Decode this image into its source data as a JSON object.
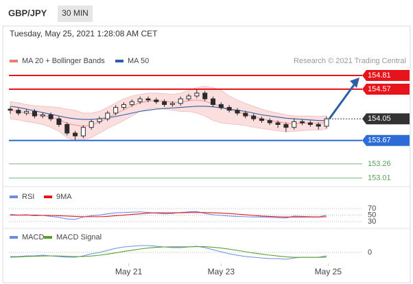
{
  "header": {
    "symbol": "GBP/JPY",
    "timeframe": "30 MIN",
    "timestamp": "Tuesday, May 25, 2021 1:28:08 AM CET"
  },
  "chart_data": [
    {
      "type": "candlestick",
      "credit": "Research © 2021 Trading Central",
      "candle_color": "#2b2b2b",
      "xlim": [
        0,
        39
      ],
      "ylim": [
        152.91,
        154.93
      ],
      "ohlc": [
        [
          154.22,
          154.26,
          154.14,
          154.2
        ],
        [
          154.2,
          154.24,
          154.11,
          154.15
        ],
        [
          154.15,
          154.22,
          154.11,
          154.18
        ],
        [
          154.18,
          154.22,
          154.06,
          154.1
        ],
        [
          154.1,
          154.16,
          154.06,
          154.12
        ],
        [
          154.12,
          154.16,
          154.01,
          154.05
        ],
        [
          154.05,
          154.09,
          153.91,
          153.95
        ],
        [
          153.95,
          153.99,
          153.76,
          153.8
        ],
        [
          153.8,
          153.84,
          153.66,
          153.75
        ],
        [
          153.75,
          153.94,
          153.71,
          153.9
        ],
        [
          153.9,
          154.04,
          153.86,
          154.0
        ],
        [
          154.0,
          154.09,
          153.96,
          154.05
        ],
        [
          154.05,
          154.19,
          154.01,
          154.15
        ],
        [
          154.15,
          154.29,
          154.11,
          154.25
        ],
        [
          154.25,
          154.34,
          154.21,
          154.3
        ],
        [
          154.3,
          154.39,
          154.26,
          154.35
        ],
        [
          154.35,
          154.44,
          154.31,
          154.4
        ],
        [
          154.4,
          154.44,
          154.34,
          154.38
        ],
        [
          154.38,
          154.42,
          154.31,
          154.35
        ],
        [
          154.35,
          154.39,
          154.26,
          154.3
        ],
        [
          154.3,
          154.36,
          154.26,
          154.32
        ],
        [
          154.32,
          154.44,
          154.28,
          154.4
        ],
        [
          154.4,
          154.49,
          154.36,
          154.45
        ],
        [
          154.45,
          154.57,
          154.41,
          154.5
        ],
        [
          154.5,
          154.54,
          154.36,
          154.4
        ],
        [
          154.4,
          154.44,
          154.26,
          154.3
        ],
        [
          154.3,
          154.34,
          154.21,
          154.25
        ],
        [
          154.25,
          154.29,
          154.16,
          154.2
        ],
        [
          154.2,
          154.24,
          154.11,
          154.15
        ],
        [
          154.15,
          154.19,
          154.06,
          154.1
        ],
        [
          154.1,
          154.14,
          154.01,
          154.05
        ],
        [
          154.05,
          154.09,
          153.98,
          154.02
        ],
        [
          154.02,
          154.06,
          153.94,
          153.98
        ],
        [
          153.98,
          154.02,
          153.89,
          153.95
        ],
        [
          153.95,
          153.99,
          153.82,
          153.9
        ],
        [
          153.9,
          154.06,
          153.86,
          154.0
        ],
        [
          154.0,
          154.04,
          153.94,
          153.98
        ],
        [
          153.98,
          154.02,
          153.91,
          153.95
        ],
        [
          153.95,
          153.99,
          153.86,
          153.92
        ],
        [
          153.92,
          154.09,
          153.88,
          154.05
        ]
      ],
      "overlays": [
        {
          "name": "MA 20 + Bollinger Bands",
          "color": "#f07a7a",
          "values": [
            154.2,
            154.18,
            154.15,
            154.13,
            154.11,
            154.08,
            154.04,
            153.97,
            153.94,
            153.92,
            153.94,
            153.99,
            154.07,
            154.14,
            154.21,
            154.28,
            154.33,
            154.36,
            154.37,
            154.36,
            154.34,
            154.34,
            154.37,
            154.38,
            154.36,
            154.31,
            154.27,
            154.21,
            154.17,
            154.13,
            154.09,
            154.05,
            154.02,
            154.0,
            153.97,
            153.97,
            153.97,
            153.98,
            153.97,
            153.99
          ],
          "upper": [
            154.35,
            154.33,
            154.3,
            154.28,
            154.27,
            154.26,
            154.25,
            154.22,
            154.2,
            154.15,
            154.15,
            154.18,
            154.25,
            154.33,
            154.4,
            154.45,
            154.48,
            154.5,
            154.5,
            154.49,
            154.48,
            154.5,
            154.55,
            154.6,
            154.62,
            154.6,
            154.55,
            154.45,
            154.38,
            154.32,
            154.27,
            154.22,
            154.18,
            154.15,
            154.12,
            154.1,
            154.1,
            154.1,
            154.09,
            154.1
          ],
          "lower": [
            154.05,
            154.03,
            154.0,
            153.98,
            153.95,
            153.9,
            153.83,
            153.72,
            153.67,
            153.68,
            153.72,
            153.8,
            153.88,
            153.95,
            154.02,
            154.1,
            154.18,
            154.22,
            154.24,
            154.22,
            154.2,
            154.18,
            154.18,
            154.15,
            154.1,
            154.02,
            153.98,
            153.96,
            153.95,
            153.93,
            153.9,
            153.88,
            153.86,
            153.84,
            153.82,
            153.83,
            153.84,
            153.85,
            153.85,
            153.87
          ]
        },
        {
          "name": "MA 50",
          "color": "#2d5fa8",
          "values": [
            154.27,
            154.25,
            154.22,
            154.19,
            154.16,
            154.13,
            154.1,
            154.07,
            154.05,
            154.04,
            154.04,
            154.05,
            154.07,
            154.09,
            154.12,
            154.15,
            154.18,
            154.2,
            154.22,
            154.23,
            154.24,
            154.25,
            154.26,
            154.27,
            154.27,
            154.26,
            154.24,
            154.22,
            154.2,
            154.18,
            154.15,
            154.12,
            154.1,
            154.08,
            154.06,
            154.05,
            154.04,
            154.03,
            154.02,
            154.02
          ]
        }
      ],
      "levels": [
        {
          "value": 154.81,
          "color": "#e8141c",
          "style": "box",
          "line": "solid"
        },
        {
          "value": 154.57,
          "color": "#e8141c",
          "style": "box",
          "line": "solid"
        },
        {
          "value": 154.05,
          "color": "#333333",
          "style": "box",
          "line": "dotted"
        },
        {
          "value": 153.67,
          "color": "#2d6bd6",
          "style": "box",
          "line": "solid"
        },
        {
          "value": 153.26,
          "color": "#5aa05a",
          "style": "text",
          "line": "thin"
        },
        {
          "value": 153.01,
          "color": "#5aa05a",
          "style": "text",
          "line": "thin"
        }
      ],
      "arrow_color": "#2d5fa8"
    },
    {
      "type": "line",
      "ylim": [
        15,
        83
      ],
      "yticks": [
        70,
        50,
        30
      ],
      "series": [
        {
          "name": "RSI",
          "color": "#6b8ee0",
          "values": [
            52,
            50,
            51,
            48,
            49,
            46,
            43,
            38,
            37,
            44,
            48,
            50,
            54,
            57,
            58,
            59,
            60,
            58,
            56,
            54,
            55,
            58,
            60,
            61,
            55,
            51,
            49,
            47,
            46,
            45,
            44,
            44,
            43,
            42,
            41,
            47,
            46,
            45,
            44,
            50
          ]
        },
        {
          "name": "9MA",
          "color": "#e8141c",
          "values": [
            50,
            50,
            50,
            50,
            49,
            49,
            48,
            47,
            46,
            45,
            45,
            45,
            46,
            48,
            50,
            52,
            54,
            56,
            57,
            57,
            57,
            57,
            58,
            58,
            58,
            57,
            56,
            55,
            53,
            51,
            49,
            47,
            46,
            45,
            44,
            44,
            44,
            44,
            44,
            45
          ]
        }
      ]
    },
    {
      "type": "line",
      "ylim": [
        -0.14,
        0.14
      ],
      "yticks": [
        0
      ],
      "xticks": [
        {
          "value": 14.6,
          "label": "May 21"
        },
        {
          "value": 26,
          "label": "May 23"
        },
        {
          "value": 39.2,
          "label": "May 25"
        }
      ],
      "series": [
        {
          "name": "MACD",
          "color": "#6b8ee0",
          "values": [
            -0.03,
            -0.03,
            -0.025,
            -0.025,
            -0.02,
            -0.025,
            -0.03,
            -0.035,
            -0.035,
            -0.025,
            -0.01,
            0.0,
            0.015,
            0.03,
            0.04,
            0.045,
            0.05,
            0.05,
            0.045,
            0.04,
            0.035,
            0.035,
            0.04,
            0.045,
            0.035,
            0.02,
            0.005,
            -0.01,
            -0.02,
            -0.03,
            -0.035,
            -0.04,
            -0.045,
            -0.045,
            -0.05,
            -0.04,
            -0.035,
            -0.035,
            -0.035,
            -0.025
          ]
        },
        {
          "name": "MACD Signal",
          "color": "#5aa02a",
          "values": [
            -0.035,
            -0.033,
            -0.03,
            -0.028,
            -0.026,
            -0.025,
            -0.026,
            -0.028,
            -0.03,
            -0.03,
            -0.026,
            -0.02,
            -0.012,
            -0.003,
            0.007,
            0.016,
            0.025,
            0.032,
            0.037,
            0.04,
            0.041,
            0.041,
            0.041,
            0.042,
            0.042,
            0.038,
            0.032,
            0.024,
            0.015,
            0.005,
            -0.004,
            -0.012,
            -0.02,
            -0.026,
            -0.032,
            -0.035,
            -0.036,
            -0.036,
            -0.036,
            -0.034
          ]
        }
      ]
    }
  ]
}
